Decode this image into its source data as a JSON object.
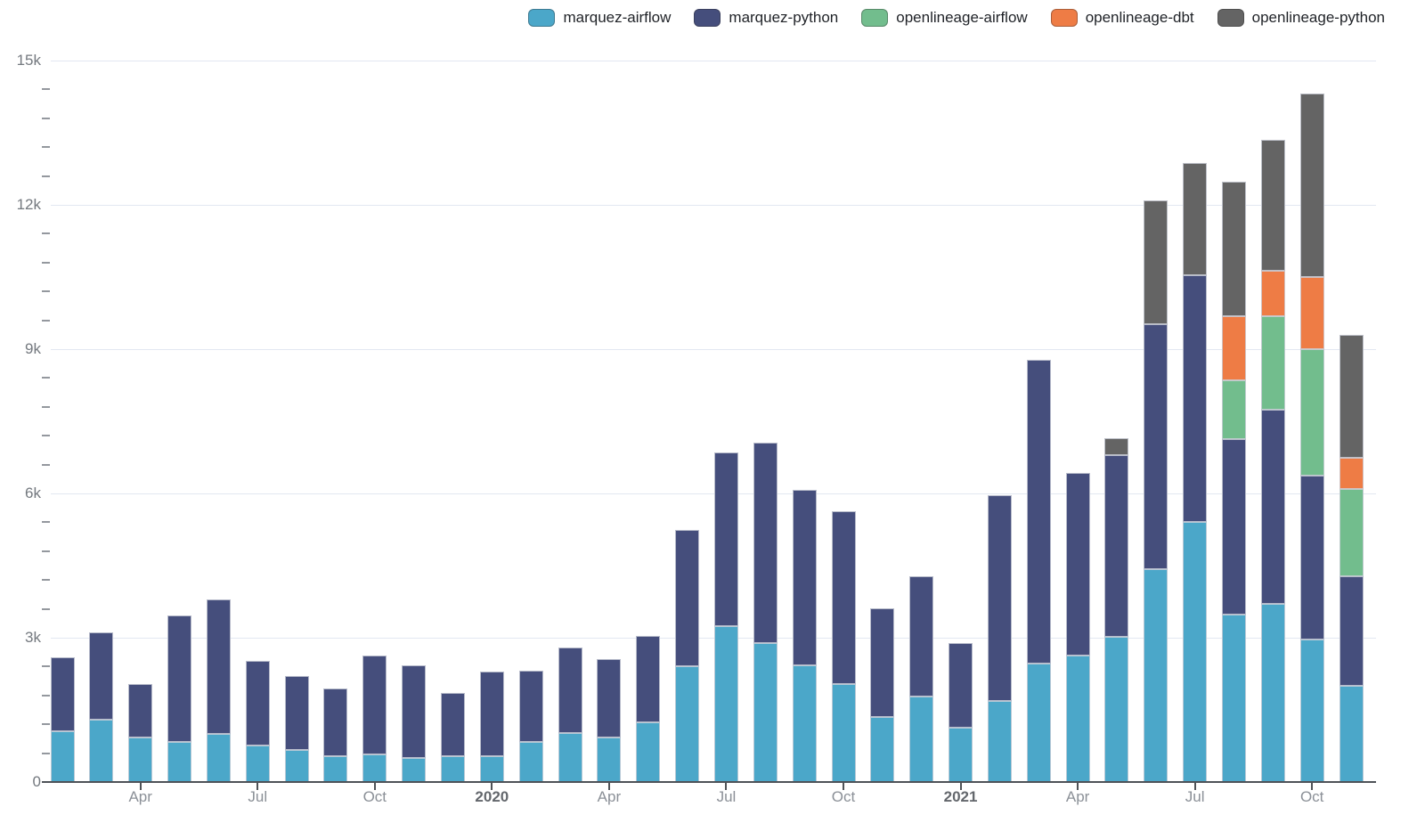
{
  "chart_data": {
    "type": "bar",
    "stacked": true,
    "title": "",
    "xlabel": "",
    "ylabel": "",
    "grid": true,
    "legend_position": "top-right",
    "background": "#ffffff",
    "categories": [
      "Feb 2019",
      "Mar 2019",
      "Apr 2019",
      "May 2019",
      "Jun 2019",
      "Jul 2019",
      "Aug 2019",
      "Sep 2019",
      "Oct 2019",
      "Nov 2019",
      "Dec 2019",
      "Jan 2020",
      "Feb 2020",
      "Mar 2020",
      "Apr 2020",
      "May 2020",
      "Jun 2020",
      "Jul 2020",
      "Aug 2020",
      "Sep 2020",
      "Oct 2020",
      "Nov 2020",
      "Dec 2020",
      "Jan 2021",
      "Feb 2021",
      "Mar 2021",
      "Apr 2021",
      "May 2021",
      "Jun 2021",
      "Jul 2021",
      "Aug 2021",
      "Sep 2021",
      "Oct 2021",
      "Nov 2021"
    ],
    "series": [
      {
        "name": "marquez-airflow",
        "color": "#4ba7c9",
        "values": [
          1050,
          1300,
          930,
          830,
          1000,
          760,
          670,
          540,
          570,
          500,
          540,
          540,
          830,
          1020,
          930,
          1240,
          2410,
          3240,
          2890,
          2430,
          2040,
          1350,
          1780,
          1130,
          1690,
          2460,
          2630,
          3020,
          4430,
          5410,
          3480,
          3700,
          2960,
          2000
        ]
      },
      {
        "name": "marquez-python",
        "color": "#454e7c",
        "values": [
          1550,
          1810,
          1110,
          2630,
          2800,
          1760,
          1530,
          1400,
          2060,
          1930,
          1310,
          1760,
          1480,
          1780,
          1630,
          1800,
          2830,
          3610,
          4170,
          3640,
          3590,
          2260,
          2500,
          1760,
          4270,
          6320,
          3790,
          3780,
          5090,
          5130,
          3650,
          4040,
          3410,
          2280
        ]
      },
      {
        "name": "openlineage-airflow",
        "color": "#72bd8d",
        "values": [
          0,
          0,
          0,
          0,
          0,
          0,
          0,
          0,
          0,
          0,
          0,
          0,
          0,
          0,
          0,
          0,
          0,
          0,
          0,
          0,
          0,
          0,
          0,
          0,
          0,
          0,
          0,
          0,
          0,
          0,
          1220,
          1950,
          2630,
          1810
        ]
      },
      {
        "name": "openlineage-dbt",
        "color": "#ee7c45",
        "values": [
          0,
          0,
          0,
          0,
          0,
          0,
          0,
          0,
          0,
          0,
          0,
          0,
          0,
          0,
          0,
          0,
          0,
          0,
          0,
          0,
          0,
          0,
          0,
          0,
          0,
          0,
          0,
          0,
          0,
          0,
          1340,
          940,
          1500,
          650
        ]
      },
      {
        "name": "openlineage-python",
        "color": "#646464",
        "values": [
          0,
          0,
          0,
          0,
          0,
          0,
          0,
          0,
          0,
          0,
          0,
          0,
          0,
          0,
          0,
          0,
          0,
          0,
          0,
          0,
          0,
          0,
          0,
          0,
          0,
          0,
          0,
          350,
          2570,
          2330,
          2790,
          2720,
          3810,
          2560
        ]
      }
    ],
    "ylim": [
      0,
      15000
    ],
    "y_major_ticks": [
      {
        "value": 0,
        "label": "0"
      },
      {
        "value": 3000,
        "label": "3k"
      },
      {
        "value": 6000,
        "label": "6k"
      },
      {
        "value": 9000,
        "label": "9k"
      },
      {
        "value": 12000,
        "label": "12k"
      },
      {
        "value": 15000,
        "label": "15k"
      }
    ],
    "y_minor_step": 600,
    "x_ticks": [
      {
        "index": 2,
        "label": "Apr",
        "bold": false
      },
      {
        "index": 5,
        "label": "Jul",
        "bold": false
      },
      {
        "index": 8,
        "label": "Oct",
        "bold": false
      },
      {
        "index": 11,
        "label": "2020",
        "bold": true
      },
      {
        "index": 14,
        "label": "Apr",
        "bold": false
      },
      {
        "index": 17,
        "label": "Jul",
        "bold": false
      },
      {
        "index": 20,
        "label": "Oct",
        "bold": false
      },
      {
        "index": 23,
        "label": "2021",
        "bold": true
      },
      {
        "index": 26,
        "label": "Apr",
        "bold": false
      },
      {
        "index": 29,
        "label": "Jul",
        "bold": false
      },
      {
        "index": 32,
        "label": "Oct",
        "bold": false
      }
    ]
  }
}
